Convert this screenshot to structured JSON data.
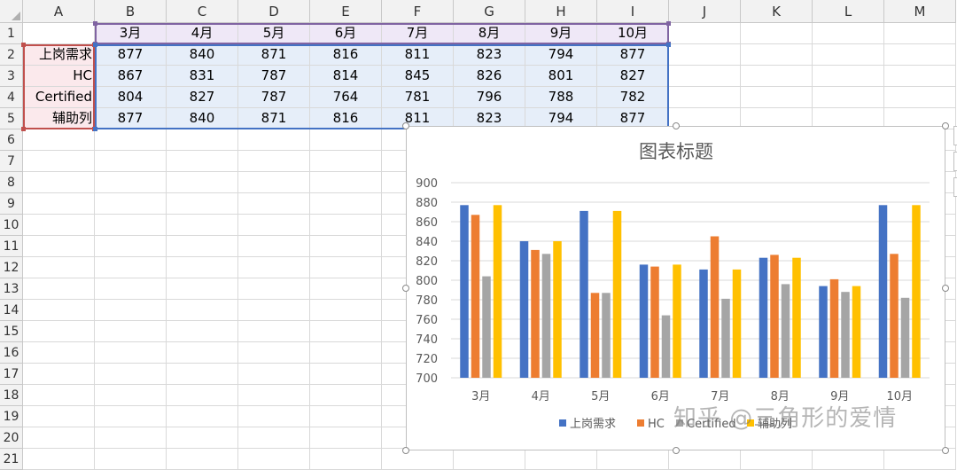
{
  "columns": [
    "A",
    "B",
    "C",
    "D",
    "E",
    "F",
    "G",
    "H",
    "I",
    "J",
    "K",
    "L",
    "M"
  ],
  "rows": [
    "1",
    "2",
    "3",
    "4",
    "5",
    "6",
    "7",
    "8",
    "9",
    "10",
    "11",
    "12",
    "13",
    "14",
    "15",
    "16",
    "17",
    "18",
    "19",
    "20",
    "21"
  ],
  "header_row": [
    "3月",
    "4月",
    "5月",
    "6月",
    "7月",
    "8月",
    "9月",
    "10月"
  ],
  "data_rows": [
    {
      "label": "上岗需求",
      "values": [
        "877",
        "840",
        "871",
        "816",
        "811",
        "823",
        "794",
        "877"
      ]
    },
    {
      "label": "HC",
      "values": [
        "867",
        "831",
        "787",
        "814",
        "845",
        "826",
        "801",
        "827"
      ]
    },
    {
      "label": "Certified",
      "values": [
        "804",
        "827",
        "787",
        "764",
        "781",
        "796",
        "788",
        "782"
      ]
    },
    {
      "label": "辅助列",
      "values": [
        "877",
        "840",
        "871",
        "816",
        "811",
        "823",
        "794",
        "877"
      ]
    }
  ],
  "chart_data": {
    "type": "bar",
    "title": "图表标题",
    "categories": [
      "3月",
      "4月",
      "5月",
      "6月",
      "7月",
      "8月",
      "9月",
      "10月"
    ],
    "series": [
      {
        "name": "上岗需求",
        "color": "#4472c4",
        "values": [
          877,
          840,
          871,
          816,
          811,
          823,
          794,
          877
        ]
      },
      {
        "name": "HC",
        "color": "#ed7d31",
        "values": [
          867,
          831,
          787,
          814,
          845,
          826,
          801,
          827
        ]
      },
      {
        "name": "Certified",
        "color": "#a5a5a5",
        "values": [
          804,
          827,
          787,
          764,
          781,
          796,
          788,
          782
        ]
      },
      {
        "name": "辅助列",
        "color": "#ffc000",
        "values": [
          877,
          840,
          871,
          816,
          811,
          823,
          794,
          877
        ]
      }
    ],
    "ylim": [
      700,
      900
    ],
    "yticks": [
      "700",
      "720",
      "740",
      "760",
      "780",
      "800",
      "820",
      "840",
      "860",
      "880",
      "900"
    ],
    "grid": true,
    "legend": "bottom"
  },
  "watermark": "知乎 @三角形的爱情"
}
